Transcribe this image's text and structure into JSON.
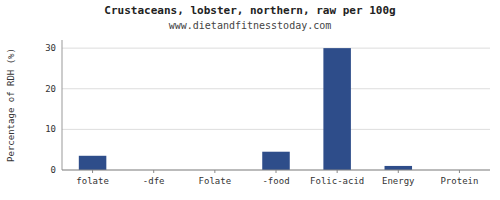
{
  "chart_data": {
    "type": "bar",
    "title": "Crustaceans, lobster, northern, raw per 100g",
    "subtitle": "www.dietandfitnesstoday.com",
    "categories": [
      "folate",
      "-dfe",
      "Folate",
      "-food",
      "Folic-acid",
      "Energy",
      "Protein"
    ],
    "values": [
      3.5,
      0.0,
      0.0,
      4.5,
      30.0,
      1.0,
      0.0
    ],
    "color": "#2e4d8a",
    "ylabel": "Percentage of RDH (%)",
    "ylim": [
      0,
      32
    ],
    "yticks": [
      0,
      10,
      20,
      30
    ],
    "grid": true
  }
}
